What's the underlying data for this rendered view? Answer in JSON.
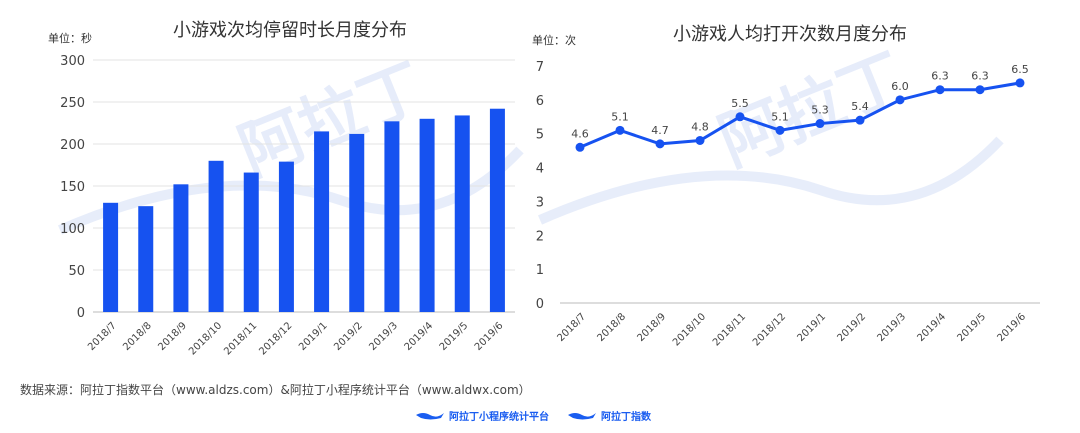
{
  "chart_data": [
    {
      "type": "bar",
      "title": "小游戏次均停留时长月度分布",
      "unit_label": "单位：秒",
      "categories": [
        "2018/7",
        "2018/8",
        "2018/9",
        "2018/10",
        "2018/11",
        "2018/12",
        "2019/1",
        "2019/2",
        "2019/3",
        "2019/4",
        "2019/5",
        "2019/6"
      ],
      "values": [
        130,
        126,
        152,
        180,
        166,
        179,
        215,
        212,
        227,
        230,
        234,
        242
      ],
      "ylim": [
        0,
        300
      ],
      "yticks": [
        0,
        50,
        100,
        150,
        200,
        250,
        300
      ],
      "grid": true,
      "color": "#1652f0"
    },
    {
      "type": "line",
      "title": "小游戏人均打开次数月度分布",
      "unit_label": "单位：次",
      "categories": [
        "2018/7",
        "2018/8",
        "2018/9",
        "2018/10",
        "2018/11",
        "2018/12",
        "2019/1",
        "2019/2",
        "2019/3",
        "2019/4",
        "2019/5",
        "2019/6"
      ],
      "values": [
        4.6,
        5.1,
        4.7,
        4.8,
        5.5,
        5.1,
        5.3,
        5.4,
        6.0,
        6.3,
        6.3,
        6.5
      ],
      "data_labels": [
        "4.6",
        "5.1",
        "4.7",
        "4.8",
        "5.5",
        "5.1",
        "5.3",
        "5.4",
        "6.0",
        "6.3",
        "6.3",
        "6.5"
      ],
      "ylim": [
        0,
        7
      ],
      "yticks": [
        0,
        1,
        2,
        3,
        4,
        5,
        6,
        7
      ],
      "grid": false,
      "color": "#1652f0"
    }
  ],
  "footer": {
    "source": "数据来源：阿拉丁指数平台（www.aldzs.com）&阿拉丁小程序统计平台（www.aldwx.com）",
    "logo_left": "阿拉丁小程序统计平台",
    "logo_right": "阿拉丁指数"
  },
  "watermark": "阿拉丁"
}
